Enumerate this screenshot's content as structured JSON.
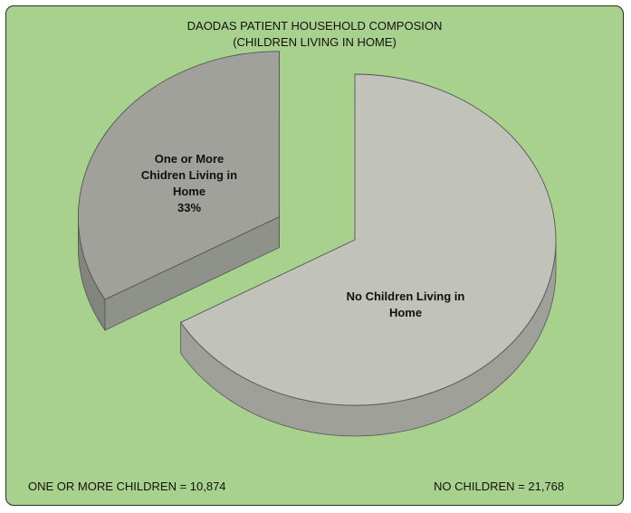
{
  "chart_data": {
    "type": "pie",
    "title": "DAODAS PATIENT HOUSEHOLD COMPOSION",
    "subtitle": "(CHILDREN LIVING IN HOME)",
    "slices": [
      {
        "label_lines": [
          "No Children Living in",
          "Home"
        ],
        "value": 21768,
        "percent": 67,
        "color": "#c1c3ba",
        "exploded": false
      },
      {
        "label_lines": [
          "One or More",
          "Chidren Living in",
          "Home",
          "33%"
        ],
        "value": 10874,
        "percent": 33,
        "color": "#9fa19a",
        "exploded": true
      }
    ],
    "footer": {
      "left": "ONE OR MORE CHILDREN = 10,874",
      "right": "NO CHILDREN = 21,768"
    },
    "style": "3d-exploded-pie",
    "background_color": "#a9d18e"
  }
}
